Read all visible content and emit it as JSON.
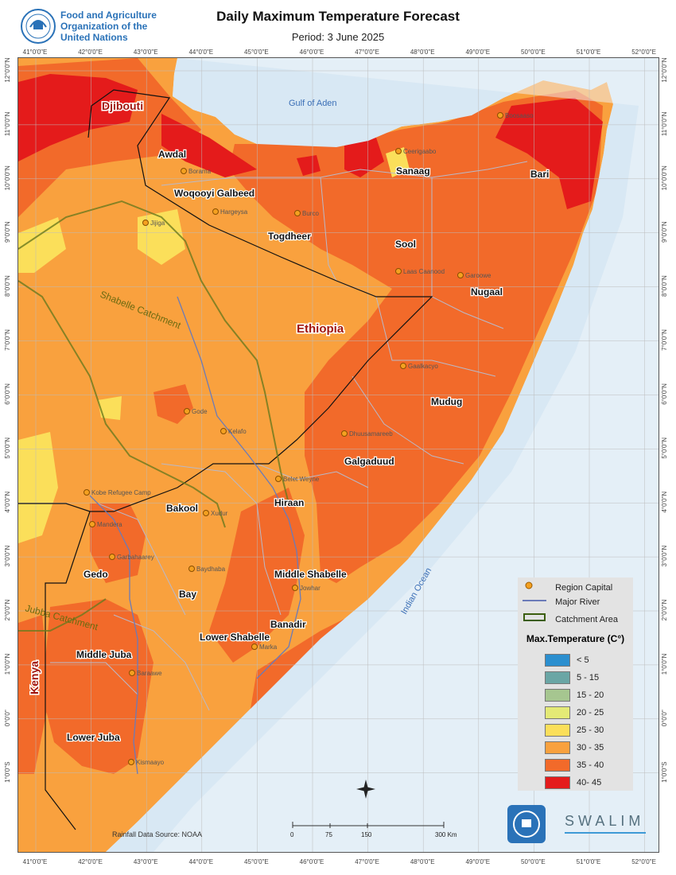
{
  "header": {
    "org_line1": "Food and Agriculture",
    "org_line2": "Organization of the",
    "org_line3": "United Nations",
    "title": "Daily Maximum Temperature Forecast",
    "period": "Period: 3 June 2025"
  },
  "axes": {
    "longitudes": [
      "41°0'0\"E",
      "42°0'0\"E",
      "43°0'0\"E",
      "44°0'0\"E",
      "45°0'0\"E",
      "46°0'0\"E",
      "47°0'0\"E",
      "48°0'0\"E",
      "49°0'0\"E",
      "50°0'0\"E",
      "51°0'0\"E",
      "52°0'0\"E"
    ],
    "latitudes": [
      "12°0'0\"N",
      "11°0'0\"N",
      "10°0'0\"N",
      "9°0'0\"N",
      "8°0'0\"N",
      "7°0'0\"N",
      "6°0'0\"N",
      "5°0'0\"N",
      "4°0'0\"N",
      "3°0'0\"N",
      "2°0'0\"N",
      "1°0'0\"N",
      "0°0'0\"",
      "1°0'0\"S"
    ]
  },
  "countries": {
    "djibouti": "Djibouti",
    "ethiopia": "Ethiopia",
    "kenya": "Kenya"
  },
  "water": {
    "gulf": "Gulf of Aden",
    "ocean": "Indian Ocean"
  },
  "catchments": {
    "shabelle": "Shabelle Catchment",
    "jubba": "Jubba Catchment"
  },
  "regions": [
    "Awdal",
    "Woqooyi Galbeed",
    "Togdheer",
    "Sanaag",
    "Bari",
    "Sool",
    "Nugaal",
    "Mudug",
    "Galgaduud",
    "Hiraan",
    "Bakool",
    "Gedo",
    "Bay",
    "Middle Shabelle",
    "Banadir",
    "Lower Shabelle",
    "Middle Juba",
    "Lower Juba"
  ],
  "cities": [
    "Boosaaso",
    "Ceerigaabo",
    "Borama",
    "Hargeysa",
    "Burco",
    "Jijiga",
    "Laas Caanood",
    "Garoowe",
    "Gaalkacyo",
    "Gode",
    "Kelafo",
    "Dhuusamareeb",
    "Belet Weyne",
    "Kobe Refugee Camp",
    "Mandera",
    "Xudur",
    "Garbahaarey",
    "Baydhaba",
    "Jowhar",
    "Marka",
    "Baraawe",
    "Kismaayo"
  ],
  "legend": {
    "capital": "Region Capital",
    "river": "Major River",
    "catchment": "Catchment Area",
    "title": "Max.Temperature (C°)",
    "classes": [
      {
        "label": "< 5",
        "color": "#2b8fcf"
      },
      {
        "label": "5 - 15",
        "color": "#6aa6a5"
      },
      {
        "label": "15 - 20",
        "color": "#a6c690"
      },
      {
        "label": "20 - 25",
        "color": "#e4ea76"
      },
      {
        "label": "25 - 30",
        "color": "#fbdf5a"
      },
      {
        "label": "30 - 35",
        "color": "#f9a13e"
      },
      {
        "label": "35 - 40",
        "color": "#f26a2a"
      },
      {
        "label": "40- 45",
        "color": "#e41b1b"
      }
    ]
  },
  "scale": {
    "labels": [
      "0",
      "75",
      "150",
      "300 Km"
    ]
  },
  "source": "Rainfall Data Source: NOAA",
  "partner": "SWALIM"
}
